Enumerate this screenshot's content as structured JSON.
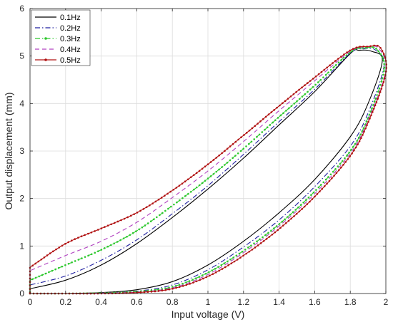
{
  "chart_data": {
    "type": "line",
    "title": "",
    "xlabel": "Input voltage (V)",
    "ylabel": "Output displacement (mm)",
    "xlim": [
      0,
      2
    ],
    "ylim": [
      0,
      6
    ],
    "xticks": [
      0,
      0.2,
      0.4,
      0.6,
      0.8,
      1,
      1.2,
      1.4,
      1.6,
      1.8,
      2
    ],
    "xtick_labels": [
      "0",
      "0.2",
      "0.4",
      "0.6",
      "0.8",
      "1",
      "1.2",
      "1.4",
      "1.6",
      "1.8",
      "2"
    ],
    "yticks": [
      0,
      1,
      2,
      3,
      4,
      5,
      6
    ],
    "ytick_labels": [
      "0",
      "1",
      "2",
      "3",
      "4",
      "5",
      "6"
    ],
    "grid": true,
    "legend_position": "top-left",
    "series": [
      {
        "name": "0.1Hz",
        "color": "#000000",
        "style": "solid",
        "marker": "none",
        "points": [
          [
            0.0,
            0.0
          ],
          [
            0.2,
            0.0
          ],
          [
            0.4,
            0.02
          ],
          [
            0.6,
            0.08
          ],
          [
            0.8,
            0.25
          ],
          [
            1.0,
            0.6
          ],
          [
            1.2,
            1.1
          ],
          [
            1.4,
            1.7
          ],
          [
            1.6,
            2.4
          ],
          [
            1.8,
            3.3
          ],
          [
            1.9,
            4.0
          ],
          [
            1.98,
            4.9
          ],
          [
            1.92,
            5.1
          ],
          [
            1.85,
            5.12
          ],
          [
            1.8,
            5.05
          ],
          [
            1.6,
            4.25
          ],
          [
            1.4,
            3.55
          ],
          [
            1.2,
            2.85
          ],
          [
            1.0,
            2.2
          ],
          [
            0.8,
            1.6
          ],
          [
            0.6,
            1.05
          ],
          [
            0.4,
            0.6
          ],
          [
            0.2,
            0.28
          ],
          [
            0.0,
            0.1
          ]
        ]
      },
      {
        "name": "0.2Hz",
        "color": "#1f1fa0",
        "style": "dashdot",
        "marker": "none",
        "points": [
          [
            0.0,
            0.0
          ],
          [
            0.2,
            0.0
          ],
          [
            0.4,
            0.01
          ],
          [
            0.6,
            0.05
          ],
          [
            0.8,
            0.18
          ],
          [
            1.0,
            0.5
          ],
          [
            1.2,
            0.98
          ],
          [
            1.4,
            1.55
          ],
          [
            1.6,
            2.25
          ],
          [
            1.8,
            3.1
          ],
          [
            1.9,
            3.8
          ],
          [
            1.99,
            4.8
          ],
          [
            1.94,
            5.13
          ],
          [
            1.87,
            5.15
          ],
          [
            1.8,
            5.06
          ],
          [
            1.6,
            4.3
          ],
          [
            1.4,
            3.62
          ],
          [
            1.2,
            2.93
          ],
          [
            1.0,
            2.27
          ],
          [
            0.8,
            1.68
          ],
          [
            0.6,
            1.13
          ],
          [
            0.4,
            0.7
          ],
          [
            0.2,
            0.37
          ],
          [
            0.0,
            0.18
          ]
        ]
      },
      {
        "name": "0.3Hz",
        "color": "#2ec82e",
        "style": "dashdot",
        "marker": "dot",
        "points": [
          [
            0.0,
            0.0
          ],
          [
            0.2,
            0.0
          ],
          [
            0.4,
            0.01
          ],
          [
            0.6,
            0.04
          ],
          [
            0.8,
            0.14
          ],
          [
            1.0,
            0.44
          ],
          [
            1.2,
            0.9
          ],
          [
            1.4,
            1.46
          ],
          [
            1.6,
            2.15
          ],
          [
            1.8,
            3.0
          ],
          [
            1.9,
            3.7
          ],
          [
            1.99,
            4.7
          ],
          [
            1.95,
            5.14
          ],
          [
            1.88,
            5.17
          ],
          [
            1.8,
            5.08
          ],
          [
            1.6,
            4.38
          ],
          [
            1.4,
            3.72
          ],
          [
            1.2,
            3.05
          ],
          [
            1.0,
            2.42
          ],
          [
            0.8,
            1.85
          ],
          [
            0.6,
            1.32
          ],
          [
            0.4,
            0.92
          ],
          [
            0.2,
            0.6
          ],
          [
            0.0,
            0.28
          ]
        ]
      },
      {
        "name": "0.4Hz",
        "color": "#b040c0",
        "style": "dashed",
        "marker": "none",
        "points": [
          [
            0.0,
            0.0
          ],
          [
            0.2,
            0.0
          ],
          [
            0.4,
            0.01
          ],
          [
            0.6,
            0.03
          ],
          [
            0.8,
            0.12
          ],
          [
            1.0,
            0.4
          ],
          [
            1.2,
            0.86
          ],
          [
            1.4,
            1.42
          ],
          [
            1.6,
            2.1
          ],
          [
            1.8,
            2.95
          ],
          [
            1.9,
            3.65
          ],
          [
            2.0,
            4.7
          ],
          [
            1.96,
            5.16
          ],
          [
            1.89,
            5.19
          ],
          [
            1.8,
            5.1
          ],
          [
            1.6,
            4.48
          ],
          [
            1.4,
            3.85
          ],
          [
            1.2,
            3.2
          ],
          [
            1.0,
            2.58
          ],
          [
            0.8,
            2.02
          ],
          [
            0.6,
            1.5
          ],
          [
            0.4,
            1.1
          ],
          [
            0.2,
            0.8
          ],
          [
            0.0,
            0.48
          ]
        ]
      },
      {
        "name": "0.5Hz",
        "color": "#b01010",
        "style": "solid",
        "marker": "dot",
        "points": [
          [
            0.0,
            0.0
          ],
          [
            0.2,
            0.0
          ],
          [
            0.4,
            0.0
          ],
          [
            0.6,
            0.02
          ],
          [
            0.8,
            0.1
          ],
          [
            1.0,
            0.36
          ],
          [
            1.2,
            0.8
          ],
          [
            1.4,
            1.36
          ],
          [
            1.6,
            2.04
          ],
          [
            1.8,
            2.9
          ],
          [
            1.9,
            3.6
          ],
          [
            2.0,
            4.65
          ],
          [
            1.97,
            5.17
          ],
          [
            1.9,
            5.2
          ],
          [
            1.8,
            5.12
          ],
          [
            1.6,
            4.55
          ],
          [
            1.4,
            3.95
          ],
          [
            1.2,
            3.33
          ],
          [
            1.0,
            2.72
          ],
          [
            0.8,
            2.17
          ],
          [
            0.6,
            1.7
          ],
          [
            0.4,
            1.37
          ],
          [
            0.2,
            1.05
          ],
          [
            0.0,
            0.55
          ]
        ]
      }
    ]
  }
}
